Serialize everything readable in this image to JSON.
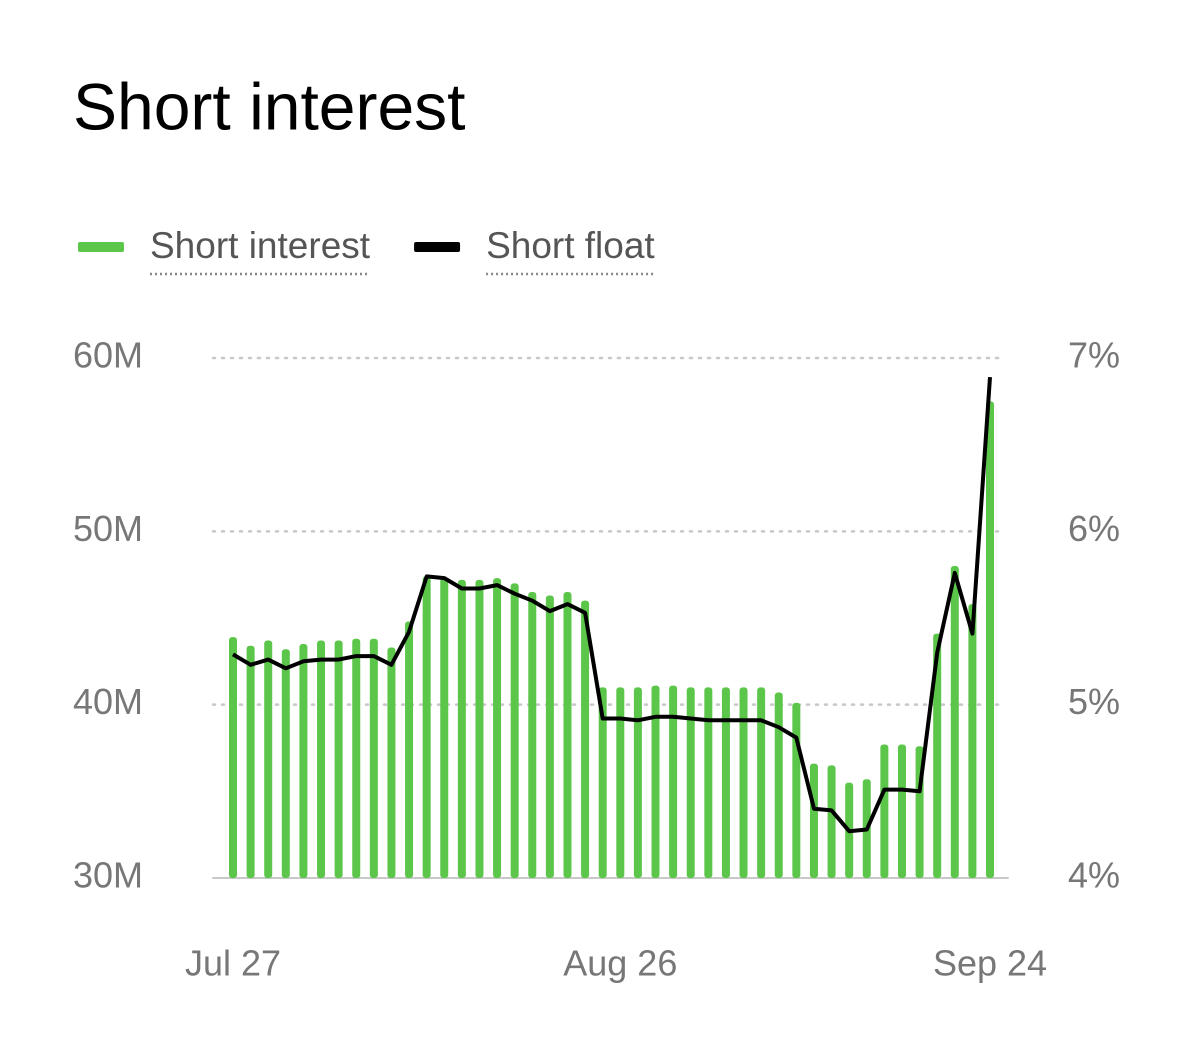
{
  "chart_data": {
    "type": "bar-line",
    "title": "Short interest",
    "categories": [
      "Jul 27",
      null,
      null,
      null,
      null,
      null,
      null,
      null,
      null,
      null,
      null,
      null,
      null,
      null,
      null,
      null,
      null,
      null,
      null,
      null,
      null,
      null,
      "Aug 26",
      null,
      null,
      null,
      null,
      null,
      null,
      null,
      null,
      null,
      null,
      null,
      null,
      null,
      null,
      null,
      null,
      null,
      null,
      null,
      null,
      "Sep 24"
    ],
    "series": [
      {
        "name": "Short interest",
        "color": "#5cc64a",
        "kind": "bar",
        "values": [
          43.9,
          43.4,
          43.7,
          43.2,
          43.5,
          43.7,
          43.7,
          43.8,
          43.8,
          43.3,
          44.8,
          47.4,
          47.3,
          47.2,
          47.2,
          47.3,
          47.0,
          46.5,
          46.3,
          46.5,
          46.0,
          41.0,
          41.0,
          41.0,
          41.1,
          41.1,
          41.0,
          41.0,
          41.0,
          41.0,
          41.0,
          40.7,
          40.1,
          36.6,
          36.5,
          35.5,
          35.7,
          37.7,
          37.7,
          37.6,
          44.1,
          48.0,
          45.8,
          57.5
        ]
      },
      {
        "name": "Short float",
        "color": "#000000",
        "kind": "line",
        "axis": "y2",
        "values": [
          5.29,
          5.23,
          5.26,
          5.21,
          5.25,
          5.26,
          5.26,
          5.28,
          5.28,
          5.23,
          5.42,
          5.74,
          5.73,
          5.67,
          5.67,
          5.69,
          5.64,
          5.6,
          5.54,
          5.58,
          5.53,
          4.92,
          4.92,
          4.91,
          4.93,
          4.93,
          4.92,
          4.91,
          4.91,
          4.91,
          4.91,
          4.87,
          4.81,
          4.4,
          4.39,
          4.27,
          4.28,
          4.51,
          4.51,
          4.5,
          5.3,
          5.76,
          5.41,
          6.89
        ]
      }
    ],
    "ylim": [
      30,
      60
    ],
    "yticks": [
      {
        "value": 30,
        "label": "30M"
      },
      {
        "value": 40,
        "label": "40M"
      },
      {
        "value": 50,
        "label": "50M"
      },
      {
        "value": 60,
        "label": "60M"
      }
    ],
    "y2lim": [
      4,
      7
    ],
    "y2ticks": [
      {
        "value": 4,
        "label": "4%"
      },
      {
        "value": 5,
        "label": "5%"
      },
      {
        "value": 6,
        "label": "6%"
      },
      {
        "value": 7,
        "label": "7%"
      }
    ],
    "grid": true
  }
}
